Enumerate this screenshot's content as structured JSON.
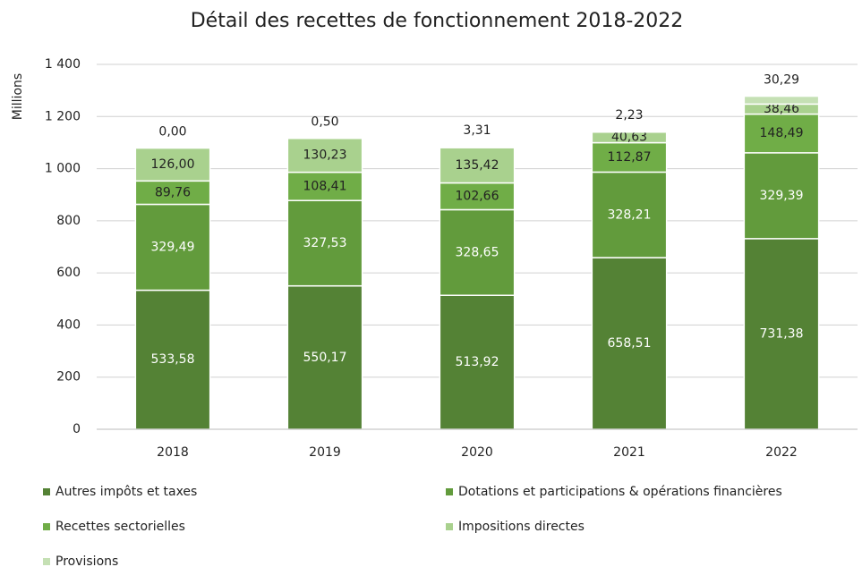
{
  "chart_data": {
    "type": "stacked_bar",
    "title": "Détail des recettes de fonctionnement  2018-2022",
    "y_label": "Millions",
    "categories": [
      "2018",
      "2019",
      "2020",
      "2021",
      "2022"
    ],
    "series": [
      {
        "name": "Autres impôts et taxes",
        "color": "#548235",
        "values": [
          533.58,
          550.17,
          513.92,
          658.51,
          731.38
        ],
        "value_labels": [
          "533,58",
          "550,17",
          "513,92",
          "658,51",
          "731,38"
        ]
      },
      {
        "name": "Dotations et participations & opérations financières",
        "color": "#629b3c",
        "values": [
          329.49,
          327.53,
          328.65,
          328.21,
          329.39
        ],
        "value_labels": [
          "329,49",
          "327,53",
          "328,65",
          "328,21",
          "329,39"
        ]
      },
      {
        "name": "Recettes sectorielles",
        "color": "#70ad47",
        "values": [
          89.76,
          108.41,
          102.66,
          112.87,
          148.49
        ],
        "value_labels": [
          "89,76",
          "108,41",
          "102,66",
          "112,87",
          "148,49"
        ]
      },
      {
        "name": "Impositions directes",
        "color": "#a9d18e",
        "values": [
          126.0,
          130.23,
          135.42,
          40.63,
          38.46
        ],
        "value_labels": [
          "126,00",
          "130,23",
          "135,42",
          "40,63",
          "38,46"
        ]
      },
      {
        "name": "Provisions",
        "color": "#c5e0b4",
        "values": [
          0.0,
          0.5,
          3.31,
          2.23,
          30.29
        ],
        "value_labels": [
          "0,00",
          "0,50",
          "3,31",
          "2,23",
          "30,29"
        ]
      }
    ],
    "ylim": [
      0,
      1400
    ],
    "yticks": [
      0,
      200,
      400,
      600,
      800,
      {
        "value": 1000,
        "label": "1 000"
      },
      {
        "value": 1200,
        "label": "1 200"
      },
      {
        "value": 1400,
        "label": "1 400"
      }
    ],
    "grid": true,
    "legend": "bottom"
  }
}
